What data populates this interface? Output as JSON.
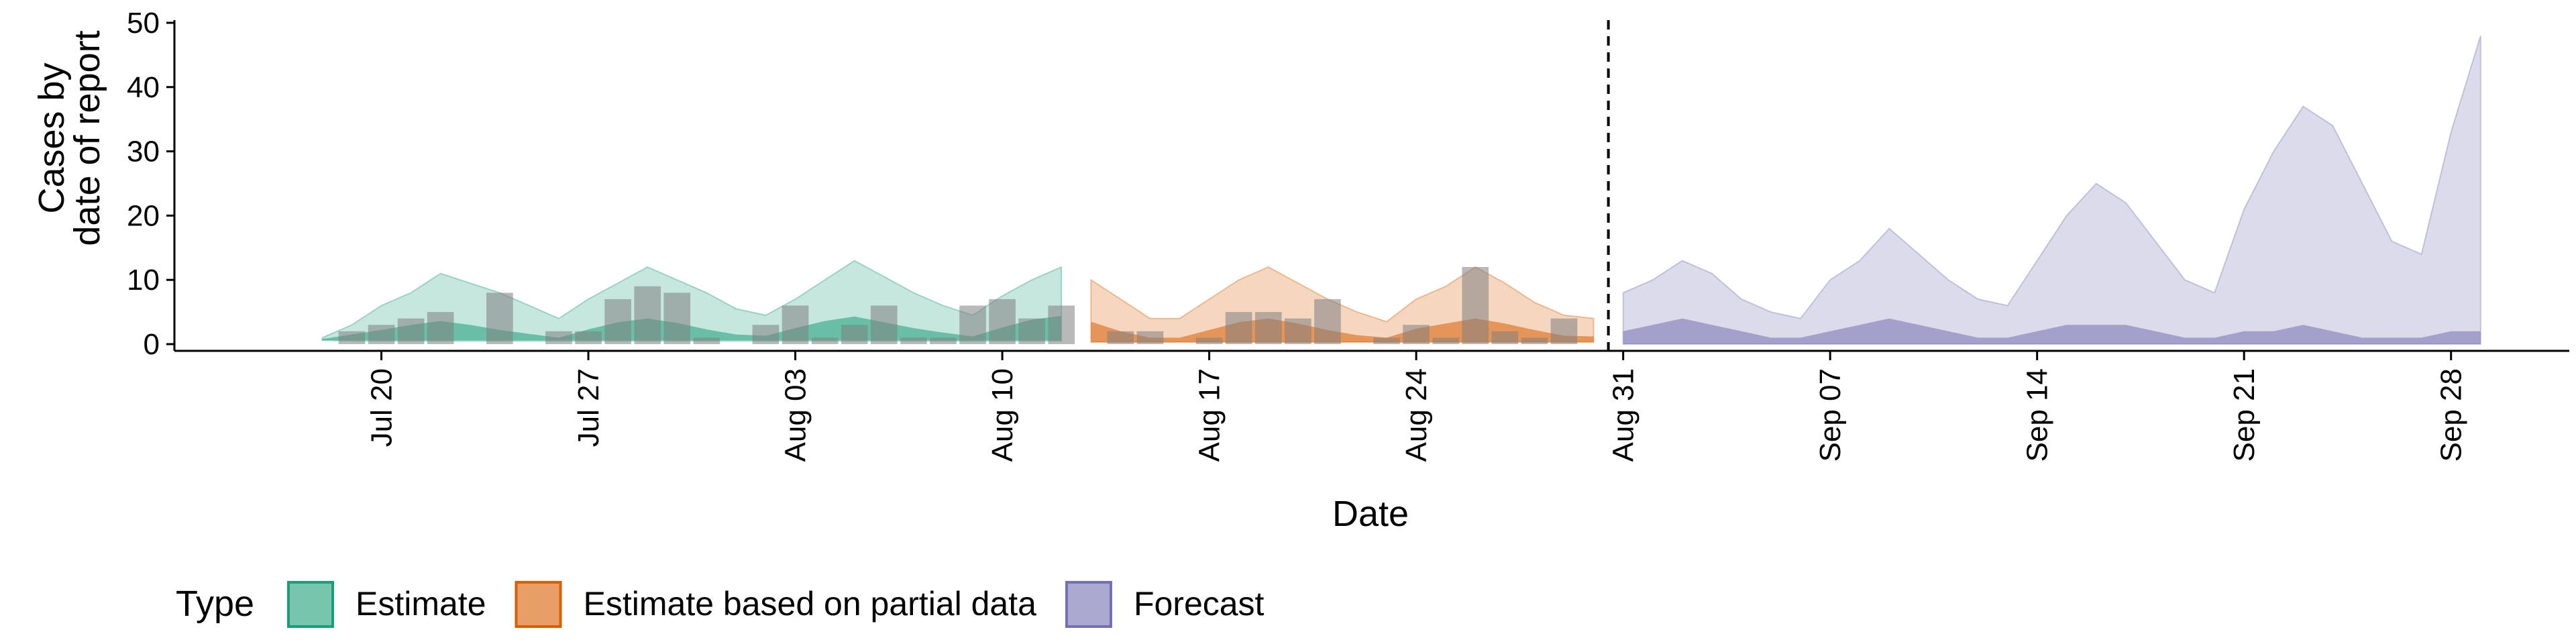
{
  "chart_data": {
    "type": "area",
    "xlabel": "Date",
    "ylabel_lines": [
      "Cases by",
      "date of report"
    ],
    "ylim": [
      0,
      50
    ],
    "xlim": [
      "2020-07-13",
      "2020-10-02"
    ],
    "y_ticks": [
      0,
      10,
      20,
      30,
      40,
      50
    ],
    "x_ticks": [
      {
        "date": "2020-07-20",
        "label": "Jul 20"
      },
      {
        "date": "2020-07-27",
        "label": "Jul 27"
      },
      {
        "date": "2020-08-03",
        "label": "Aug 03"
      },
      {
        "date": "2020-08-10",
        "label": "Aug 10"
      },
      {
        "date": "2020-08-17",
        "label": "Aug 17"
      },
      {
        "date": "2020-08-24",
        "label": "Aug 24"
      },
      {
        "date": "2020-08-31",
        "label": "Aug 31"
      },
      {
        "date": "2020-09-07",
        "label": "Sep 07"
      },
      {
        "date": "2020-09-14",
        "label": "Sep 14"
      },
      {
        "date": "2020-09-21",
        "label": "Sep 21"
      },
      {
        "date": "2020-09-28",
        "label": "Sep 28"
      }
    ],
    "forecast_start": "2020-08-30",
    "grid": false,
    "legend": {
      "title": "Type",
      "position": "bottom",
      "entries": [
        {
          "label": "Estimate",
          "fill": "#1b9e77",
          "stroke": "#1b9e77"
        },
        {
          "label": "Estimate based on partial data",
          "fill": "#d95f02",
          "stroke": "#d95f02"
        },
        {
          "label": "Forecast",
          "fill": "#7570b3",
          "stroke": "#7570b3"
        }
      ]
    },
    "observed_bar_color": "#7f7f7f",
    "observed_cases": [
      {
        "date": "2020-07-19",
        "value": 2
      },
      {
        "date": "2020-07-20",
        "value": 3
      },
      {
        "date": "2020-07-21",
        "value": 4
      },
      {
        "date": "2020-07-22",
        "value": 5
      },
      {
        "date": "2020-07-24",
        "value": 8
      },
      {
        "date": "2020-07-26",
        "value": 2
      },
      {
        "date": "2020-07-27",
        "value": 2
      },
      {
        "date": "2020-07-28",
        "value": 7
      },
      {
        "date": "2020-07-29",
        "value": 9
      },
      {
        "date": "2020-07-30",
        "value": 8
      },
      {
        "date": "2020-07-31",
        "value": 1
      },
      {
        "date": "2020-08-02",
        "value": 3
      },
      {
        "date": "2020-08-03",
        "value": 6
      },
      {
        "date": "2020-08-04",
        "value": 1
      },
      {
        "date": "2020-08-05",
        "value": 3
      },
      {
        "date": "2020-08-06",
        "value": 6
      },
      {
        "date": "2020-08-07",
        "value": 1
      },
      {
        "date": "2020-08-08",
        "value": 1
      },
      {
        "date": "2020-08-09",
        "value": 6
      },
      {
        "date": "2020-08-10",
        "value": 7
      },
      {
        "date": "2020-08-11",
        "value": 4
      },
      {
        "date": "2020-08-12",
        "value": 6
      },
      {
        "date": "2020-08-14",
        "value": 2
      },
      {
        "date": "2020-08-15",
        "value": 2
      },
      {
        "date": "2020-08-17",
        "value": 1
      },
      {
        "date": "2020-08-18",
        "value": 5
      },
      {
        "date": "2020-08-19",
        "value": 5
      },
      {
        "date": "2020-08-20",
        "value": 4
      },
      {
        "date": "2020-08-21",
        "value": 7
      },
      {
        "date": "2020-08-23",
        "value": 1
      },
      {
        "date": "2020-08-24",
        "value": 3
      },
      {
        "date": "2020-08-25",
        "value": 1
      },
      {
        "date": "2020-08-26",
        "value": 12
      },
      {
        "date": "2020-08-27",
        "value": 2
      },
      {
        "date": "2020-08-28",
        "value": 1
      },
      {
        "date": "2020-08-29",
        "value": 4
      }
    ],
    "series": [
      {
        "type": "Estimate",
        "color": "#1b9e77",
        "dates": [
          "2020-07-18",
          "2020-07-19",
          "2020-07-20",
          "2020-07-21",
          "2020-07-22",
          "2020-07-23",
          "2020-07-24",
          "2020-07-25",
          "2020-07-26",
          "2020-07-27",
          "2020-07-28",
          "2020-07-29",
          "2020-07-30",
          "2020-07-31",
          "2020-08-01",
          "2020-08-02",
          "2020-08-03",
          "2020-08-04",
          "2020-08-05",
          "2020-08-06",
          "2020-08-07",
          "2020-08-08",
          "2020-08-09",
          "2020-08-10",
          "2020-08-11",
          "2020-08-12"
        ],
        "outer_upper": [
          1,
          3,
          6,
          8,
          11,
          9.5,
          8,
          6,
          4,
          7,
          9.5,
          12,
          10,
          8,
          5.5,
          4.5,
          7,
          10,
          13,
          10.5,
          8,
          6,
          4.5,
          7.5,
          10,
          12
        ],
        "outer_lower": [
          0.6,
          0.5,
          0.5,
          0.5,
          0.5,
          0.5,
          0.5,
          0.5,
          0.5,
          0.5,
          0.5,
          0.5,
          0.5,
          0.5,
          0.5,
          0.5,
          0.5,
          0.5,
          0.5,
          0.5,
          0.5,
          0.5,
          0.5,
          0.5,
          0.5,
          0.5
        ],
        "inner_upper": [
          0.8,
          1.5,
          2.2,
          3,
          3.6,
          3,
          2.2,
          1.6,
          1,
          2.3,
          3.4,
          4,
          3.3,
          2.3,
          1.5,
          1.3,
          2.5,
          3.6,
          4.3,
          3.4,
          2.5,
          1.8,
          1.2,
          2.6,
          3.8,
          4.4
        ],
        "inner_lower": [
          0.6,
          0.6,
          0.6,
          0.6,
          0.6,
          0.6,
          0.6,
          0.6,
          0.6,
          0.6,
          0.6,
          0.6,
          0.6,
          0.6,
          0.6,
          0.6,
          0.6,
          0.6,
          0.6,
          0.6,
          0.6,
          0.6,
          0.6,
          0.6,
          0.6,
          0.6
        ]
      },
      {
        "type": "Estimate based on partial data",
        "color": "#d95f02",
        "dates": [
          "2020-08-13",
          "2020-08-14",
          "2020-08-15",
          "2020-08-16",
          "2020-08-17",
          "2020-08-18",
          "2020-08-19",
          "2020-08-20",
          "2020-08-21",
          "2020-08-22",
          "2020-08-23",
          "2020-08-24",
          "2020-08-25",
          "2020-08-26",
          "2020-08-27",
          "2020-08-28",
          "2020-08-29",
          "2020-08-30"
        ],
        "outer_upper": [
          10,
          7,
          4,
          4,
          7,
          10,
          12,
          9.5,
          7,
          5,
          3.5,
          7,
          9,
          12,
          9.5,
          6.5,
          4.5,
          4
        ],
        "outer_lower": [
          0.3,
          0.3,
          0.3,
          0.3,
          0.3,
          0.3,
          0.3,
          0.3,
          0.3,
          0.3,
          0.3,
          0.3,
          0.3,
          0.3,
          0.3,
          0.3,
          0.3,
          0.3
        ],
        "inner_upper": [
          3.5,
          2,
          1,
          1,
          2.2,
          3.4,
          4,
          3.2,
          2.2,
          1.4,
          1,
          2.4,
          3.2,
          4,
          3.2,
          2.2,
          1.3,
          1.2
        ],
        "inner_lower": [
          0.3,
          0.3,
          0.3,
          0.3,
          0.3,
          0.3,
          0.3,
          0.3,
          0.3,
          0.3,
          0.3,
          0.3,
          0.3,
          0.3,
          0.3,
          0.3,
          0.3,
          0.3
        ]
      },
      {
        "type": "Forecast",
        "color": "#7570b3",
        "dates": [
          "2020-08-31",
          "2020-09-01",
          "2020-09-02",
          "2020-09-03",
          "2020-09-04",
          "2020-09-05",
          "2020-09-06",
          "2020-09-07",
          "2020-09-08",
          "2020-09-09",
          "2020-09-10",
          "2020-09-11",
          "2020-09-12",
          "2020-09-13",
          "2020-09-14",
          "2020-09-15",
          "2020-09-16",
          "2020-09-17",
          "2020-09-18",
          "2020-09-19",
          "2020-09-20",
          "2020-09-21",
          "2020-09-22",
          "2020-09-23",
          "2020-09-24",
          "2020-09-25",
          "2020-09-26",
          "2020-09-27",
          "2020-09-28",
          "2020-09-29"
        ],
        "outer_upper": [
          8,
          10,
          13,
          11,
          7,
          5,
          4,
          10,
          13,
          18,
          14,
          10,
          7,
          6,
          13,
          20,
          25,
          22,
          16,
          10,
          8,
          21,
          30,
          37,
          34,
          25,
          16,
          14,
          33,
          48
        ],
        "outer_lower": [
          0,
          0,
          0,
          0,
          0,
          0,
          0,
          0,
          0,
          0,
          0,
          0,
          0,
          0,
          0,
          0,
          0,
          0,
          0,
          0,
          0,
          0,
          0,
          0,
          0,
          0,
          0,
          0,
          0,
          0
        ],
        "inner_upper": [
          2,
          3,
          4,
          3,
          2,
          1,
          1,
          2,
          3,
          4,
          3,
          2,
          1,
          1,
          2,
          3,
          3,
          3,
          2,
          1,
          1,
          2,
          2,
          3,
          2,
          1,
          1,
          1,
          2,
          2
        ],
        "inner_lower": [
          0,
          0,
          0,
          0,
          0,
          0,
          0,
          0,
          0,
          0,
          0,
          0,
          0,
          0,
          0,
          0,
          0,
          0,
          0,
          0,
          0,
          0,
          0,
          0,
          0,
          0,
          0,
          0,
          0,
          0
        ]
      }
    ]
  }
}
